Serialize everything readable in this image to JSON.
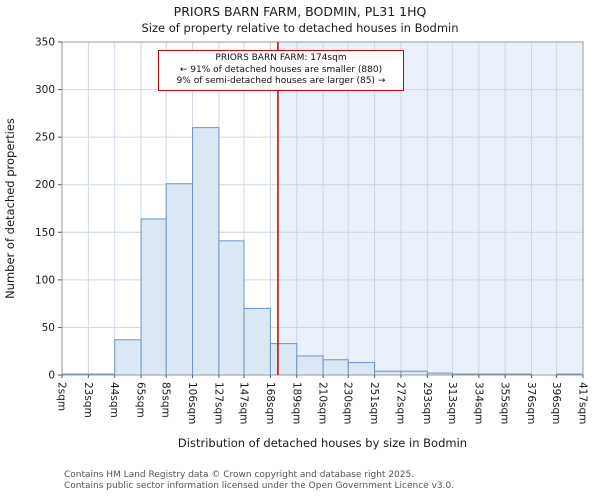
{
  "header": {
    "title": "PRIORS BARN FARM, BODMIN, PL31 1HQ",
    "subtitle": "Size of property relative to detached houses in Bodmin"
  },
  "annotation": {
    "line1": "PRIORS BARN FARM: 174sqm",
    "line2": "← 91% of detached houses are smaller (880)",
    "line3": "9% of semi-detached houses are larger (85) →"
  },
  "footer": {
    "line1": "Contains HM Land Registry data © Crown copyright and database right 2025.",
    "line2": "Contains public sector information licensed under the Open Government Licence v3.0."
  },
  "chart_data": {
    "type": "bar",
    "title": "PRIORS BARN FARM, BODMIN, PL31 1HQ",
    "subtitle": "Size of property relative to detached houses in Bodmin",
    "xlabel": "Distribution of detached houses by size in Bodmin",
    "ylabel": "Number of detached properties",
    "ylim": [
      0,
      350
    ],
    "y_tick_step": 50,
    "grid": true,
    "bin_edges": [
      2,
      23,
      44,
      65,
      85,
      106,
      127,
      147,
      168,
      189,
      210,
      230,
      251,
      272,
      293,
      313,
      334,
      355,
      376,
      396,
      417
    ],
    "bin_edge_labels": [
      "2sqm",
      "23sqm",
      "44sqm",
      "65sqm",
      "85sqm",
      "106sqm",
      "127sqm",
      "147sqm",
      "168sqm",
      "189sqm",
      "210sqm",
      "230sqm",
      "251sqm",
      "272sqm",
      "293sqm",
      "313sqm",
      "334sqm",
      "355sqm",
      "376sqm",
      "396sqm",
      "417sqm"
    ],
    "values": [
      1,
      1,
      37,
      164,
      201,
      260,
      141,
      70,
      33,
      20,
      16,
      13,
      4,
      4,
      2,
      1,
      1,
      1,
      0,
      1
    ],
    "marker": {
      "value": 174,
      "label": "174sqm",
      "color": "#cc0000"
    },
    "shade_right_of_marker": true,
    "colors": {
      "bar_fill": "#dce7f5",
      "bar_stroke": "#6c93c4",
      "grid": "#ccd6e8",
      "shade": "#e9f0fa",
      "axis": "#999999",
      "tick": "#555555",
      "text": "#1a1a1a"
    }
  }
}
